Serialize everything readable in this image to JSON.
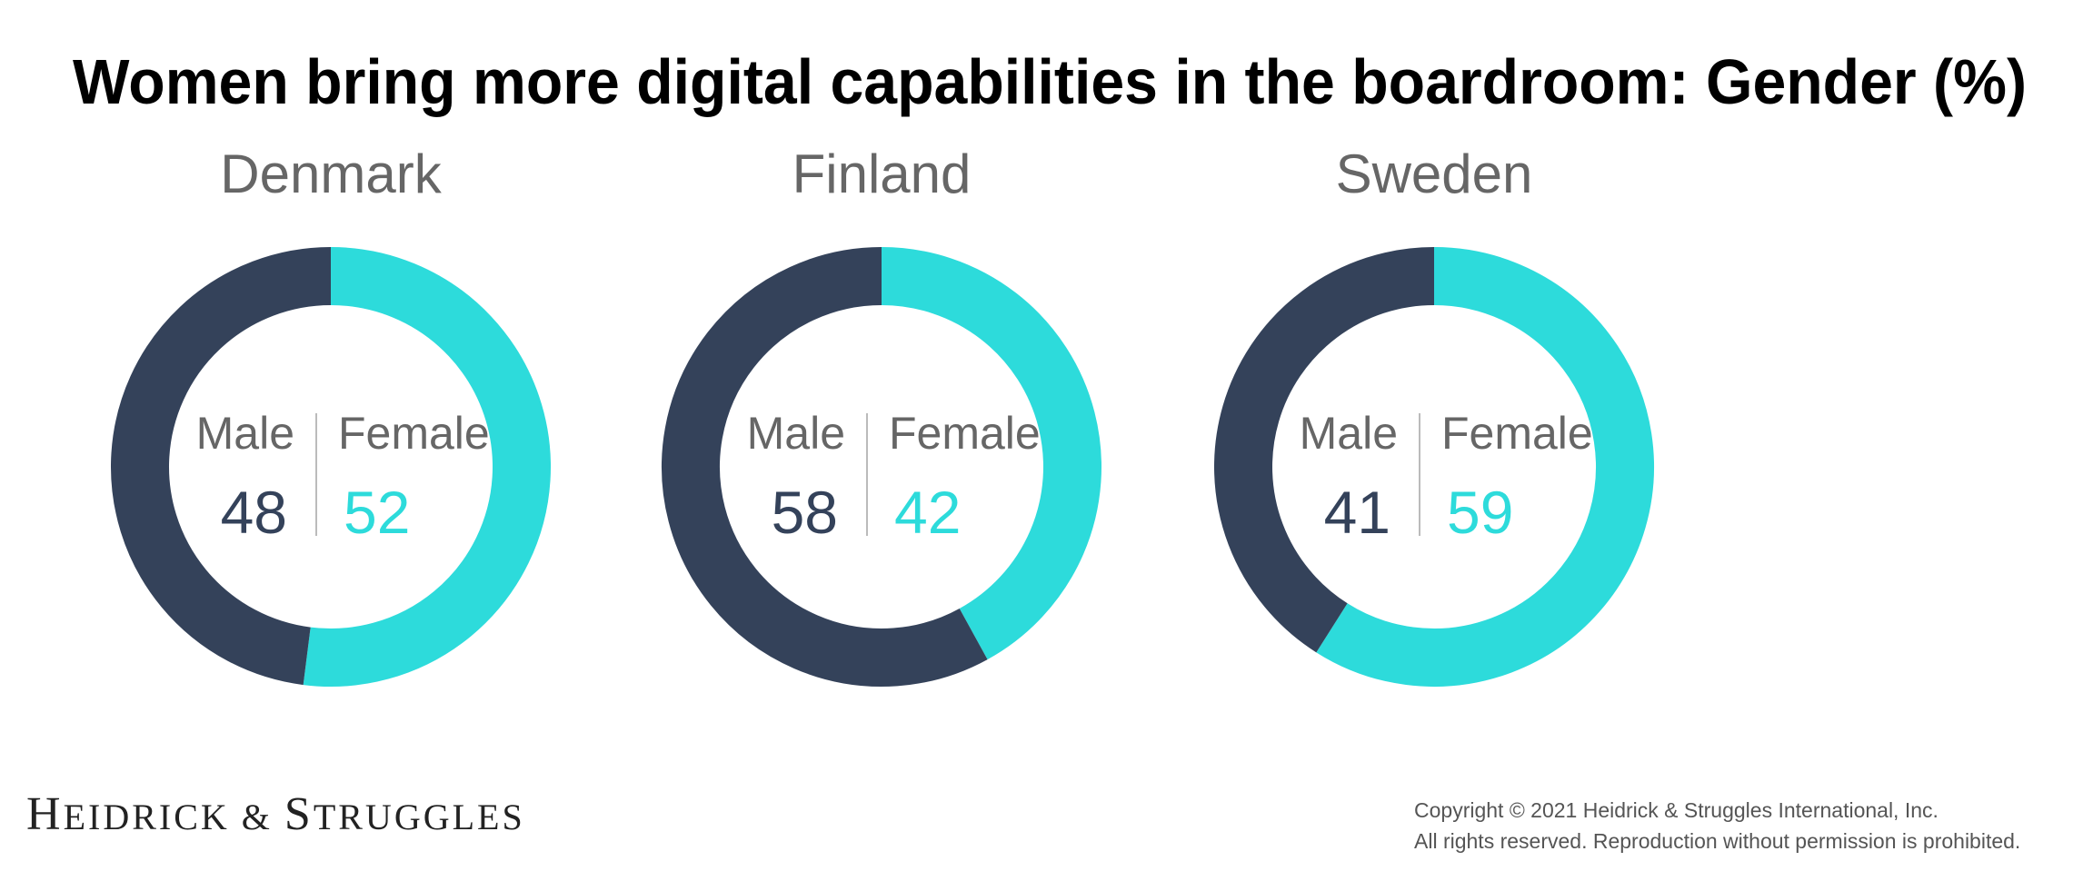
{
  "chart_data": {
    "type": "pie",
    "variant": "donut",
    "title": "Women bring more digital capabilities in the boardroom: Gender (%)",
    "colors": {
      "Male": "#34425a",
      "Female": "#2ddbdb"
    },
    "charts": [
      {
        "country": "Denmark",
        "male_label": "Male",
        "female_label": "Female",
        "male": 48,
        "female": 52
      },
      {
        "country": "Finland",
        "male_label": "Male",
        "female_label": "Female",
        "male": 58,
        "female": 42
      },
      {
        "country": "Sweden",
        "male_label": "Male",
        "female_label": "Female",
        "male": 41,
        "female": 59
      }
    ]
  },
  "footer": {
    "logo": "Heidrick & Struggles",
    "copyright_line1": "Copyright © 2021 Heidrick & Struggles International, Inc.",
    "copyright_line2": "All rights reserved. Reproduction without permission is prohibited."
  }
}
